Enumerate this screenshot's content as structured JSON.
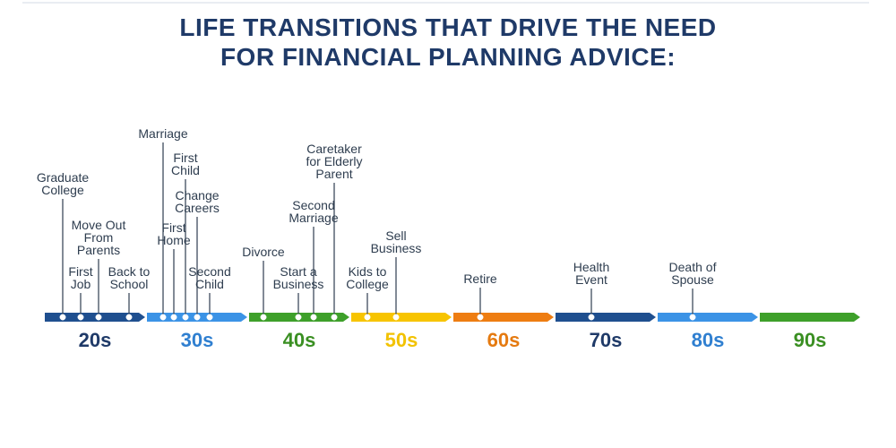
{
  "title_line1": "LIFE TRANSITIONS THAT DRIVE THE NEED",
  "title_line2": "FOR FINANCIAL PLANNING ADVICE:",
  "decades": [
    {
      "label": "20s",
      "color": "#1f4f8f",
      "text_color": "#1f3a68"
    },
    {
      "label": "30s",
      "color": "#3b93e6",
      "text_color": "#2f7fd0"
    },
    {
      "label": "40s",
      "color": "#3ea02a",
      "text_color": "#3a8f22"
    },
    {
      "label": "50s",
      "color": "#f7c400",
      "text_color": "#f2c200"
    },
    {
      "label": "60s",
      "color": "#ee7d12",
      "text_color": "#e57a10"
    },
    {
      "label": "70s",
      "color": "#1f4f8f",
      "text_color": "#1f3a68"
    },
    {
      "label": "80s",
      "color": "#3b93e6",
      "text_color": "#2f7fd0"
    },
    {
      "label": "90s",
      "color": "#3ea02a",
      "text_color": "#3a8f22"
    }
  ],
  "events": [
    {
      "decade": "20s",
      "lines": [
        "Graduate",
        "College"
      ]
    },
    {
      "decade": "20s",
      "lines": [
        "First",
        "Job"
      ]
    },
    {
      "decade": "20s",
      "lines": [
        "Move Out",
        "From",
        "Parents"
      ]
    },
    {
      "decade": "20s",
      "lines": [
        "Back to",
        "School"
      ]
    },
    {
      "decade": "30s",
      "lines": [
        "Marriage"
      ]
    },
    {
      "decade": "30s",
      "lines": [
        "First",
        "Home"
      ]
    },
    {
      "decade": "30s",
      "lines": [
        "First",
        "Child"
      ]
    },
    {
      "decade": "30s",
      "lines": [
        "Change",
        "Careers"
      ]
    },
    {
      "decade": "30s",
      "lines": [
        "Second",
        "Child"
      ]
    },
    {
      "decade": "40s",
      "lines": [
        "Divorce"
      ]
    },
    {
      "decade": "40s",
      "lines": [
        "Start a",
        "Business"
      ]
    },
    {
      "decade": "40s",
      "lines": [
        "Second",
        "Marriage"
      ]
    },
    {
      "decade": "40s",
      "lines": [
        "Caretaker",
        "for Elderly",
        "Parent"
      ]
    },
    {
      "decade": "50s",
      "lines": [
        "Kids to",
        "College"
      ]
    },
    {
      "decade": "50s",
      "lines": [
        "Sell",
        "Business"
      ]
    },
    {
      "decade": "60s",
      "lines": [
        "Retire"
      ]
    },
    {
      "decade": "70s",
      "lines": [
        "Health",
        "Event"
      ]
    },
    {
      "decade": "80s",
      "lines": [
        "Death of",
        "Spouse"
      ]
    }
  ]
}
